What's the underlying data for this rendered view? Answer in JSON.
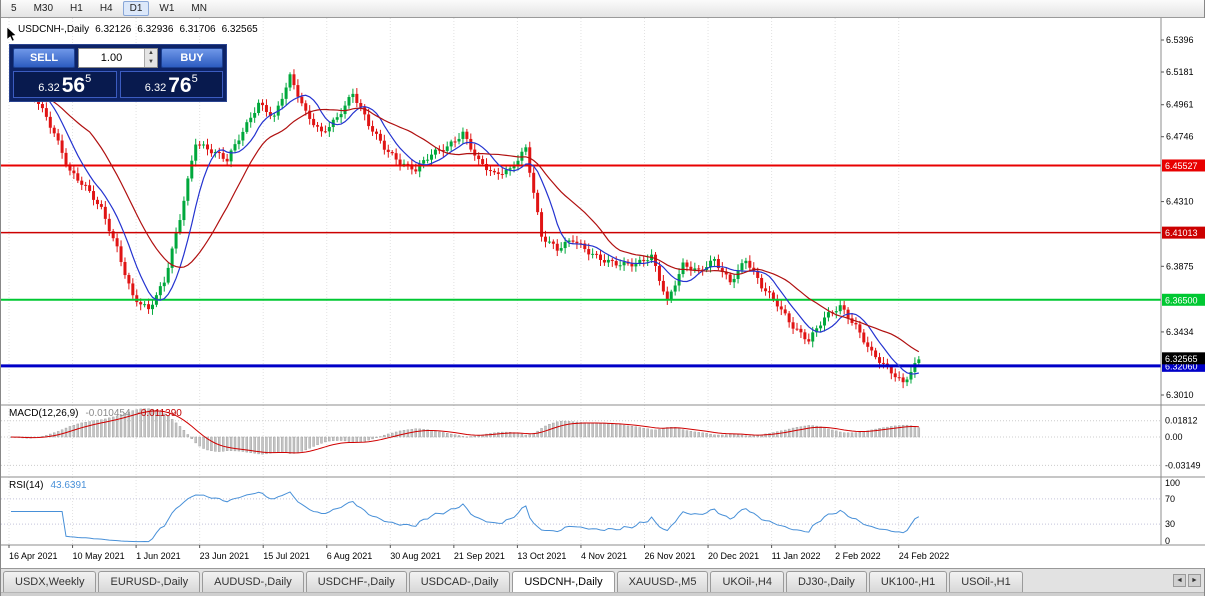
{
  "toolbar": {
    "timeframes": [
      {
        "label": "5",
        "active": false
      },
      {
        "label": "M30",
        "active": false
      },
      {
        "label": "H1",
        "active": false
      },
      {
        "label": "H4",
        "active": false
      },
      {
        "label": "D1",
        "active": true
      },
      {
        "label": "W1",
        "active": false
      },
      {
        "label": "MN",
        "active": false
      }
    ]
  },
  "chart": {
    "symbol_label": "USDCNH-,Daily",
    "open": "6.32126",
    "high": "6.32936",
    "low": "6.31706",
    "close": "6.32565"
  },
  "trade_panel": {
    "sell_label": "SELL",
    "buy_label": "BUY",
    "volume": "1.00",
    "spin_up": "▲",
    "spin_down": "▼",
    "sell_price": {
      "base": "6.32",
      "big": "56",
      "sup": "5",
      "full": "6.32565"
    },
    "buy_price": {
      "base": "6.32",
      "big": "76",
      "sup": "5",
      "full": "6.32765"
    }
  },
  "macd": {
    "title": "MACD(12,26,9)",
    "value_macd": "-0.010454",
    "value_signal": "-0.011390",
    "axis": [
      {
        "label": "0.01812",
        "value": 0.01812
      },
      {
        "label": "0.00",
        "value": 0
      },
      {
        "label": "-0.03149",
        "value": -0.03149
      }
    ]
  },
  "rsi": {
    "title": "RSI(14)",
    "value": "43.6391",
    "axis": [
      {
        "label": "100",
        "value": 100
      },
      {
        "label": "70",
        "value": 70
      },
      {
        "label": "30",
        "value": 30
      },
      {
        "label": "0",
        "value": 0
      }
    ],
    "levels": [
      70,
      30
    ]
  },
  "tabs": [
    {
      "label": "USDX,Weekly",
      "active": false
    },
    {
      "label": "EURUSD-,Daily",
      "active": false
    },
    {
      "label": "AUDUSD-,Daily",
      "active": false
    },
    {
      "label": "USDCHF-,Daily",
      "active": false
    },
    {
      "label": "USDCAD-,Daily",
      "active": false
    },
    {
      "label": "USDCNH-,Daily",
      "active": true
    },
    {
      "label": "XAUUSD-,M5",
      "active": false
    },
    {
      "label": "UKOil-,H4",
      "active": false
    },
    {
      "label": "DJ30-,Daily",
      "active": false
    },
    {
      "label": "UK100-,H1",
      "active": false
    },
    {
      "label": "USOil-,H1",
      "active": false
    }
  ],
  "tab_scroll": {
    "left": "◄",
    "right": "►"
  },
  "chart_data": {
    "type": "candlestick",
    "symbol": "USDCNH-",
    "timeframe": "Daily",
    "current_ohlc": {
      "open": 6.32126,
      "high": 6.32936,
      "low": 6.31706,
      "close": 6.32565
    },
    "bid": 6.32565,
    "ask": 6.32765,
    "x_dates": [
      "16 Apr 2021",
      "10 May 2021",
      "1 Jun 2021",
      "23 Jun 2021",
      "15 Jul 2021",
      "6 Aug 2021",
      "30 Aug 2021",
      "21 Sep 2021",
      "13 Oct 2021",
      "4 Nov 2021",
      "26 Nov 2021",
      "20 Dec 2021",
      "11 Jan 2022",
      "2 Feb 2022",
      "24 Feb 2022"
    ],
    "y_axis_ticks": [
      6.5396,
      6.5181,
      6.4961,
      6.4746,
      6.431,
      6.3875,
      6.3434,
      6.301
    ],
    "close_path": [
      6.5,
      6.509,
      6.497,
      6.478,
      6.452,
      6.44,
      6.425,
      6.4,
      6.368,
      6.358,
      6.376,
      6.42,
      6.472,
      6.465,
      6.458,
      6.478,
      6.498,
      6.488,
      6.514,
      6.49,
      6.478,
      6.488,
      6.503,
      6.482,
      6.468,
      6.458,
      6.452,
      6.462,
      6.468,
      6.478,
      6.458,
      6.448,
      6.452,
      6.468,
      6.408,
      6.398,
      6.405,
      6.398,
      6.392,
      6.388,
      6.388,
      6.395,
      6.365,
      6.388,
      6.383,
      6.392,
      6.378,
      6.392,
      6.373,
      6.362,
      6.348,
      6.338,
      6.352,
      6.36,
      6.348,
      6.33,
      6.318,
      6.308,
      6.3256
    ],
    "levels": [
      {
        "price": 6.45527,
        "label": "6.45527",
        "color": "#e80000",
        "width": 2
      },
      {
        "price": 6.41013,
        "label": "6.41013",
        "color": "#cc0000",
        "width": 1.4
      },
      {
        "price": 6.365,
        "label": "6.36500",
        "color": "#00c832",
        "width": 2
      },
      {
        "price": 6.3206,
        "label": "6.32060",
        "color": "#0000c8",
        "width": 3
      }
    ],
    "current_price": {
      "value": 6.32565,
      "label": "6.32565",
      "color": "#000000"
    },
    "moving_averages": [
      {
        "period": 8,
        "color": "#2433d0"
      },
      {
        "period": 21,
        "color": "#b01010"
      }
    ],
    "candle_up_color": "#00a83c",
    "candle_down_color": "#e01414"
  }
}
